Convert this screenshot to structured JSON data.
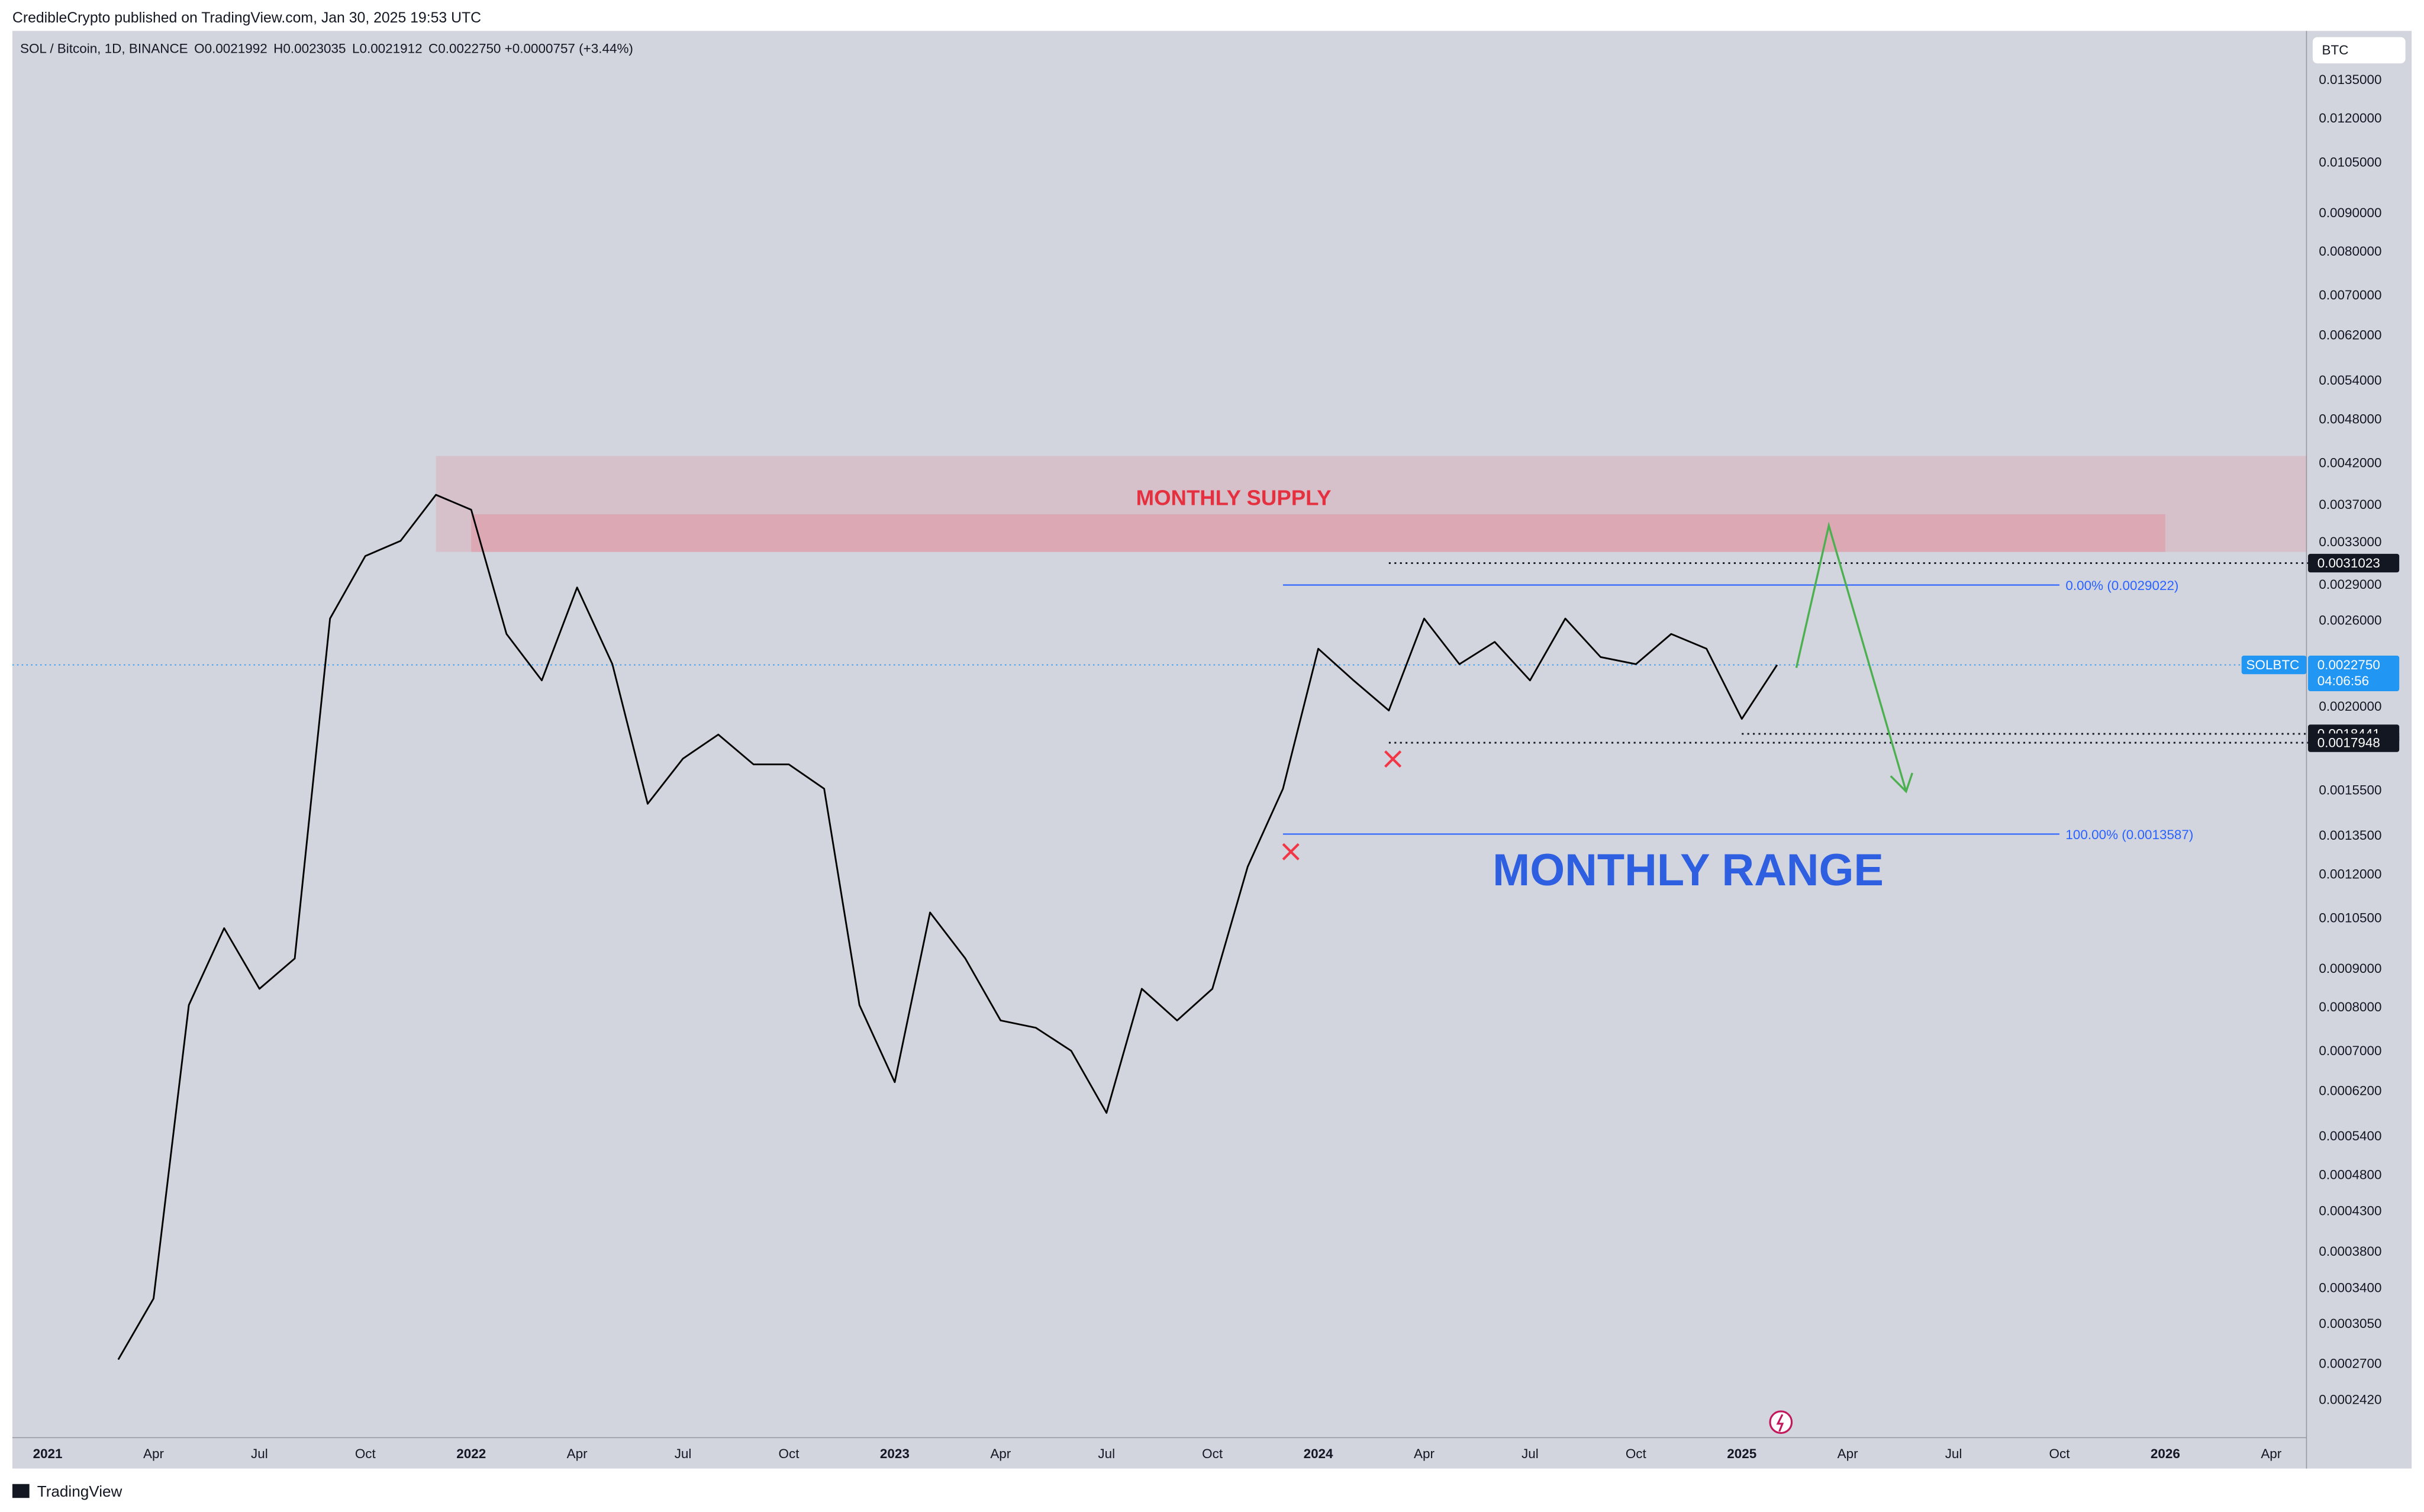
{
  "header": {
    "publisher_line": "CredibleCrypto published on TradingView.com, Jan 30, 2025 19:53 UTC"
  },
  "footer": {
    "brand": "TradingView"
  },
  "chart_data": {
    "type": "line",
    "symbol": "SOL / Bitcoin, 1D, BINANCE",
    "ohlc": [
      {
        "name": "O",
        "value": 0.0021992
      },
      {
        "name": "H",
        "value": 0.0023035
      },
      {
        "name": "L",
        "value": 0.0021912
      },
      {
        "name": "C",
        "value": 0.002275,
        "label": "0.0022750"
      }
    ],
    "change": {
      "value": 7.57e-05,
      "label": "+0.0000757"
    },
    "change_pct": {
      "value": 3.44,
      "label": "(+3.44%)"
    },
    "currency": "BTC",
    "log_scale": true,
    "x": [
      "2021-03",
      "2021-04",
      "2021-05",
      "2021-06",
      "2021-07",
      "2021-08",
      "2021-09",
      "2021-10",
      "2021-11",
      "2021-12",
      "2022-01",
      "2022-02",
      "2022-03",
      "2022-04",
      "2022-05",
      "2022-06",
      "2022-07",
      "2022-08",
      "2022-09",
      "2022-10",
      "2022-11",
      "2022-12",
      "2023-01",
      "2023-02",
      "2023-03",
      "2023-04",
      "2023-05",
      "2023-06",
      "2023-07",
      "2023-08",
      "2023-09",
      "2023-10",
      "2023-11",
      "2023-12",
      "2024-01",
      "2024-02",
      "2024-03",
      "2024-04",
      "2024-05",
      "2024-06",
      "2024-07",
      "2024-08",
      "2024-09",
      "2024-10",
      "2024-11",
      "2024-12",
      "2025-01",
      "2025-02"
    ],
    "series": [
      {
        "name": "SOLBTC",
        "color": "#000000",
        "values": [
          0.000274,
          0.00033,
          0.000807,
          0.00102,
          0.000848,
          0.00093,
          0.00262,
          0.00317,
          0.00332,
          0.00382,
          0.00365,
          0.0025,
          0.00217,
          0.00288,
          0.00228,
          0.00149,
          0.00171,
          0.00184,
          0.00168,
          0.00168,
          0.00156,
          0.000807,
          0.000638,
          0.00107,
          0.00093,
          0.00077,
          0.000753,
          0.000702,
          0.000581,
          0.000848,
          0.00077,
          0.000848,
          0.00123,
          0.00156,
          0.00239,
          0.00217,
          0.00198,
          0.00262,
          0.00228,
          0.00244,
          0.00217,
          0.00262,
          0.00233,
          0.00228,
          0.0025,
          0.00239,
          0.00193,
          0.002275
        ]
      }
    ],
    "last_price": {
      "value": 0.002275,
      "label": "0.0022750"
    },
    "countdown": "04:06:56",
    "xlim": [
      "2020-12",
      "2026-05"
    ],
    "xticks": [
      {
        "value": "2021-01",
        "label": "2021"
      },
      {
        "value": "2021-04",
        "label": "Apr"
      },
      {
        "value": "2021-07",
        "label": "Jul"
      },
      {
        "value": "2021-10",
        "label": "Oct"
      },
      {
        "value": "2022-01",
        "label": "2022"
      },
      {
        "value": "2022-04",
        "label": "Apr"
      },
      {
        "value": "2022-07",
        "label": "Jul"
      },
      {
        "value": "2022-10",
        "label": "Oct"
      },
      {
        "value": "2023-01",
        "label": "2023"
      },
      {
        "value": "2023-04",
        "label": "Apr"
      },
      {
        "value": "2023-07",
        "label": "Jul"
      },
      {
        "value": "2023-10",
        "label": "Oct"
      },
      {
        "value": "2024-01",
        "label": "2024"
      },
      {
        "value": "2024-04",
        "label": "Apr"
      },
      {
        "value": "2024-07",
        "label": "Jul"
      },
      {
        "value": "2024-10",
        "label": "Oct"
      },
      {
        "value": "2025-01",
        "label": "2025"
      },
      {
        "value": "2025-04",
        "label": "Apr"
      },
      {
        "value": "2025-07",
        "label": "Jul"
      },
      {
        "value": "2025-10",
        "label": "Oct"
      },
      {
        "value": "2026-01",
        "label": "2026"
      },
      {
        "value": "2026-04",
        "label": "Apr"
      }
    ],
    "ylim": [
      0.000216,
      0.0157
    ],
    "yticks": [
      {
        "value": 0.0135,
        "label": "0.0135000"
      },
      {
        "value": 0.012,
        "label": "0.0120000"
      },
      {
        "value": 0.0105,
        "label": "0.0105000"
      },
      {
        "value": 0.009,
        "label": "0.0090000"
      },
      {
        "value": 0.008,
        "label": "0.0080000"
      },
      {
        "value": 0.007,
        "label": "0.0070000"
      },
      {
        "value": 0.0062,
        "label": "0.0062000"
      },
      {
        "value": 0.0054,
        "label": "0.0054000"
      },
      {
        "value": 0.0048,
        "label": "0.0048000"
      },
      {
        "value": 0.0042,
        "label": "0.0042000"
      },
      {
        "value": 0.0037,
        "label": "0.0037000"
      },
      {
        "value": 0.0033,
        "label": "0.0033000"
      },
      {
        "value": 0.0029,
        "label": "0.0029000"
      },
      {
        "value": 0.0026,
        "label": "0.0026000"
      },
      {
        "value": 0.002,
        "label": "0.0020000"
      },
      {
        "value": 0.00155,
        "label": "0.0015500"
      },
      {
        "value": 0.00135,
        "label": "0.0013500"
      },
      {
        "value": 0.0012,
        "label": "0.0012000"
      },
      {
        "value": 0.00105,
        "label": "0.0010500"
      },
      {
        "value": 0.0009,
        "label": "0.0009000"
      },
      {
        "value": 0.0008,
        "label": "0.0008000"
      },
      {
        "value": 0.0007,
        "label": "0.0007000"
      },
      {
        "value": 0.00062,
        "label": "0.0006200"
      },
      {
        "value": 0.00054,
        "label": "0.0005400"
      },
      {
        "value": 0.00048,
        "label": "0.0004800"
      },
      {
        "value": 0.00043,
        "label": "0.0004300"
      },
      {
        "value": 0.00038,
        "label": "0.0003800"
      },
      {
        "value": 0.00034,
        "label": "0.0003400"
      },
      {
        "value": 0.000305,
        "label": "0.0003050"
      },
      {
        "value": 0.00027,
        "label": "0.0002700"
      },
      {
        "value": 0.000242,
        "label": "0.0002420"
      }
    ],
    "grid": false,
    "zones": [
      {
        "from": "2021-12",
        "to": "2026-05",
        "low": 0.00321,
        "high": 0.0043,
        "color": "rgba(242,54,69,0.13)"
      },
      {
        "from": "2022-01",
        "to": "2026-01",
        "low": 0.00321,
        "high": 0.0036,
        "color": "rgba(242,54,69,0.17)"
      }
    ],
    "supply_label": "MONTHLY SUPPLY",
    "range_label": "MONTHLY RANGE",
    "fib_levels": [
      {
        "value": 0.0029022,
        "label": "0.00% (0.0029022)",
        "from": "2023-12",
        "to": "2025-10"
      },
      {
        "value": 0.0013587,
        "label": "100.00% (0.0013587)",
        "from": "2023-12",
        "to": "2025-10"
      }
    ],
    "levels": [
      {
        "value": 0.0031023,
        "from": "2024-03"
      },
      {
        "value": 0.0018441,
        "from": "2025-01"
      },
      {
        "value": 0.0017948,
        "from": "2024-03"
      }
    ]
  }
}
